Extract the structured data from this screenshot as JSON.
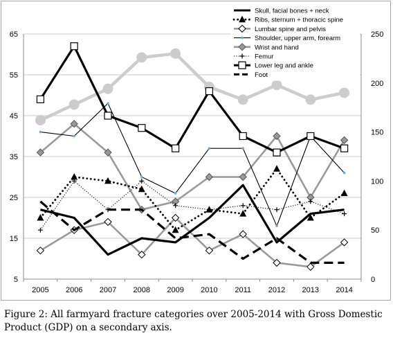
{
  "chart_data": {
    "type": "line",
    "x": [
      2005,
      2006,
      2007,
      2008,
      2009,
      2010,
      2011,
      2012,
      2013,
      2014
    ],
    "y_left": {
      "ylim": [
        5,
        65
      ],
      "ticks": [
        5,
        15,
        25,
        35,
        45,
        55,
        65
      ]
    },
    "y_right": {
      "ylim": [
        0,
        250
      ],
      "ticks": [
        0,
        50,
        100,
        150,
        200,
        250
      ]
    },
    "grid": true,
    "legend_position": "top-right",
    "series": [
      {
        "name": "Skull, facial bones + neck",
        "axis": "left",
        "color": "#000000",
        "style": "thick-solid",
        "marker": "none",
        "values": [
          22,
          20,
          11,
          15,
          14,
          20,
          28,
          14,
          21,
          22
        ]
      },
      {
        "name": "Ribs, sternum + thoracic spine",
        "axis": "left",
        "color": "#000000",
        "style": "dotted",
        "marker": "triangle",
        "values": [
          20,
          30,
          29,
          27,
          17,
          22,
          21,
          32,
          20,
          26
        ]
      },
      {
        "name": "Lumbar spine and pelvis",
        "axis": "left",
        "color": "#999999",
        "style": "solid",
        "marker": "diamond-open",
        "values": [
          12,
          17,
          19,
          11,
          20,
          12,
          16,
          9,
          8,
          14
        ]
      },
      {
        "name": "Shoulder, upper arm, forearm",
        "axis": "left",
        "color": "#000000",
        "style": "thin-solid",
        "marker": "small-dot",
        "values": [
          41,
          40,
          48,
          30,
          26,
          37,
          37,
          18,
          40,
          31
        ]
      },
      {
        "name": "Wrist and hand",
        "axis": "left",
        "color": "#999999",
        "style": "solid",
        "marker": "diamond-filled",
        "values": [
          36,
          43,
          36,
          22,
          24,
          30,
          30,
          40,
          25,
          39
        ]
      },
      {
        "name": "Femur",
        "axis": "left",
        "color": "#000000",
        "style": "fine-dotted",
        "marker": "plus",
        "values": [
          17,
          29,
          22,
          29,
          23,
          22,
          23,
          22,
          24,
          21
        ]
      },
      {
        "name": "Lower leg and ankle",
        "axis": "left",
        "color": "#000000",
        "style": "thick-solid",
        "marker": "square-open",
        "values": [
          49,
          62,
          45,
          42,
          37,
          51,
          40,
          36,
          40,
          37
        ]
      },
      {
        "name": "Foot",
        "axis": "left",
        "color": "#000000",
        "style": "thick-dashed",
        "marker": "none",
        "values": [
          24,
          17,
          22,
          22,
          15,
          16,
          10,
          15,
          9,
          9
        ]
      },
      {
        "name": "",
        "axis": "right",
        "color": "#cccccc",
        "style": "gdp-thick",
        "marker": "circle-filled",
        "values": [
          162,
          178,
          194,
          226,
          230,
          196,
          183,
          198,
          183,
          190
        ]
      }
    ]
  },
  "caption": "Figure 2: All farmyard fracture categories over 2005-2014 with Gross Domestic Product (GDP) on a secondary axis."
}
